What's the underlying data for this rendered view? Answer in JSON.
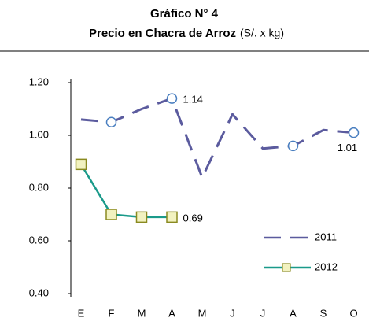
{
  "chart_data": {
    "type": "line",
    "title": "Gráfico N° 4",
    "subtitle": "Precio en Chacra de Arroz",
    "unit": "(S/. x kg)",
    "categories": [
      "E",
      "F",
      "M",
      "A",
      "M",
      "J",
      "J",
      "A",
      "S",
      "O"
    ],
    "series": [
      {
        "name": "2011",
        "color": "#5b5b9e",
        "dashed": true,
        "marker": "circle",
        "values": [
          1.06,
          1.05,
          1.1,
          1.14,
          0.84,
          1.08,
          0.95,
          0.96,
          1.02,
          1.01
        ],
        "value_labels": [
          null,
          null,
          null,
          "1.14",
          null,
          null,
          null,
          null,
          null,
          "1.01"
        ]
      },
      {
        "name": "2012",
        "color": "#1a9a8a",
        "dashed": false,
        "marker": "square",
        "marker_fill": "#f2f2c0",
        "marker_stroke": "#8a8a20",
        "values": [
          0.89,
          0.7,
          0.69,
          0.69,
          null,
          null,
          null,
          null,
          null,
          null
        ],
        "value_labels": [
          null,
          null,
          null,
          "0.69",
          null,
          null,
          null,
          null,
          null,
          null
        ]
      }
    ],
    "ylim": [
      0.4,
      1.2
    ],
    "yticks": [
      {
        "value": 0.4,
        "label": "0.40"
      },
      {
        "value": 0.6,
        "label": "0.60"
      },
      {
        "value": 0.8,
        "label": "0.80"
      },
      {
        "value": 1.0,
        "label": "1.00"
      },
      {
        "value": 1.2,
        "label": "1.20"
      }
    ],
    "legend": "lower right"
  }
}
